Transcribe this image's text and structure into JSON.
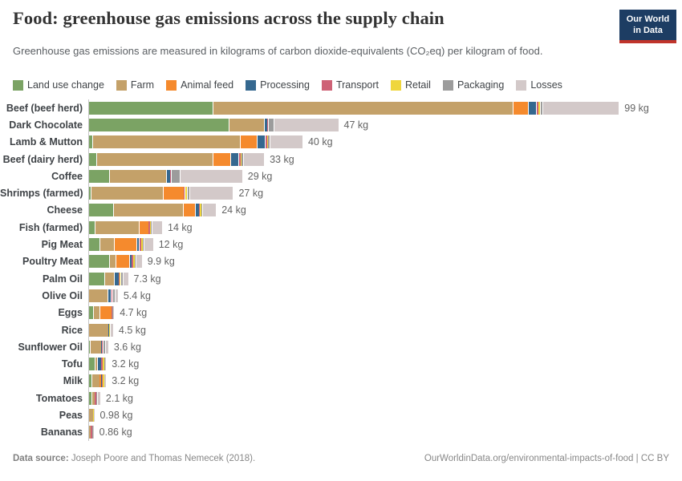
{
  "header": {
    "title": "Food: greenhouse gas emissions across the supply chain",
    "subtitle": "Greenhouse gas emissions are measured in kilograms of carbon dioxide-equivalents (CO₂eq) per kilogram of food.",
    "logo": {
      "line1": "Our World",
      "line2": "in Data",
      "bg_color": "#1d3d63",
      "accent_color": "#c0342b"
    }
  },
  "chart_data": {
    "type": "bar",
    "orientation": "horizontal",
    "stacked": true,
    "title": "Food: greenhouse gas emissions across the supply chain",
    "unit": "kg CO₂eq per kilogram of food",
    "legend_position": "top",
    "grid": false,
    "xlim": [
      0,
      100
    ],
    "series": [
      {
        "name": "Land use change",
        "color": "#7BA364"
      },
      {
        "name": "Farm",
        "color": "#C4A169"
      },
      {
        "name": "Animal feed",
        "color": "#F58A2D"
      },
      {
        "name": "Processing",
        "color": "#35688F"
      },
      {
        "name": "Transport",
        "color": "#CE6276"
      },
      {
        "name": "Retail",
        "color": "#EFD63C"
      },
      {
        "name": "Packaging",
        "color": "#9C9C9C"
      },
      {
        "name": "Losses",
        "color": "#D3C9C9"
      }
    ],
    "rows": [
      {
        "label": "Beef (beef herd)",
        "values": [
          23.2,
          56.2,
          2.9,
          1.4,
          0.5,
          0.3,
          0.4,
          14.4
        ],
        "total": 99,
        "total_label": "99 kg"
      },
      {
        "label": "Dark Chocolate",
        "values": [
          26.1,
          6.7,
          0,
          0.6,
          0.1,
          0.1,
          1.0,
          12.1
        ],
        "total": 47,
        "total_label": "47 kg"
      },
      {
        "label": "Lamb & Mutton",
        "values": [
          0.6,
          27.7,
          3.2,
          1.4,
          0.5,
          0.2,
          0.3,
          6.1
        ],
        "total": 40,
        "total_label": "40 kg"
      },
      {
        "label": "Beef (dairy herd)",
        "values": [
          1.3,
          21.9,
          3.3,
          1.5,
          0.4,
          0.2,
          0.3,
          3.9
        ],
        "total": 33,
        "total_label": "33 kg"
      },
      {
        "label": "Coffee",
        "values": [
          3.7,
          10.8,
          0,
          0.7,
          0.1,
          0.1,
          1.6,
          11.7
        ],
        "total": 29,
        "total_label": "29 kg"
      },
      {
        "label": "Shrimps (farmed)",
        "values": [
          0.3,
          13.5,
          3.9,
          0,
          0.2,
          0.4,
          0.5,
          8.2
        ],
        "total": 27,
        "total_label": "27 kg"
      },
      {
        "label": "Cheese",
        "values": [
          4.5,
          13.1,
          2.3,
          0.7,
          0.1,
          0.3,
          0.2,
          2.6
        ],
        "total": 24,
        "total_label": "24 kg"
      },
      {
        "label": "Fish (farmed)",
        "values": [
          1.1,
          8.2,
          1.8,
          0.1,
          0.3,
          0.1,
          0.1,
          2.0
        ],
        "total": 14,
        "total_label": "14 kg"
      },
      {
        "label": "Pig Meat",
        "values": [
          2.0,
          2.6,
          4.3,
          0.5,
          0.35,
          0.3,
          0.15,
          1.8
        ],
        "total": 12,
        "total_label": "12 kg"
      },
      {
        "label": "Poultry Meat",
        "values": [
          3.7,
          1.2,
          2.6,
          0.5,
          0.3,
          0.3,
          0.1,
          1.2
        ],
        "total": 9.9,
        "total_label": "9.9 kg"
      },
      {
        "label": "Palm Oil",
        "values": [
          2.8,
          1.8,
          0,
          0.9,
          0.25,
          0.05,
          0.5,
          1.0
        ],
        "total": 7.3,
        "total_label": "7.3 kg"
      },
      {
        "label": "Olive Oil",
        "values": [
          0,
          3.5,
          0,
          0.5,
          0.35,
          0.05,
          0.4,
          0.6
        ],
        "total": 5.4,
        "total_label": "5.4 kg"
      },
      {
        "label": "Eggs",
        "values": [
          0.7,
          1.3,
          2.2,
          0,
          0.1,
          0.05,
          0.15,
          0.2
        ],
        "total": 4.7,
        "total_label": "4.7 kg"
      },
      {
        "label": "Rice",
        "values": [
          0,
          3.6,
          0,
          0.1,
          0.1,
          0.05,
          0.1,
          0.55
        ],
        "total": 4.5,
        "total_label": "4.5 kg"
      },
      {
        "label": "Sunflower Oil",
        "values": [
          0.1,
          2.1,
          0,
          0.2,
          0.15,
          0.05,
          0.35,
          0.65
        ],
        "total": 3.6,
        "total_label": "3.6 kg"
      },
      {
        "label": "Tofu",
        "values": [
          1.0,
          0.5,
          0,
          0.8,
          0.2,
          0.3,
          0.2,
          0.2
        ],
        "total": 3.2,
        "total_label": "3.2 kg"
      },
      {
        "label": "Milk",
        "values": [
          0.5,
          1.5,
          0.25,
          0.15,
          0.1,
          0.3,
          0.1,
          0.3
        ],
        "total": 3.2,
        "total_label": "3.2 kg"
      },
      {
        "label": "Tomatoes",
        "values": [
          0.4,
          0.7,
          0,
          0,
          0.2,
          0.02,
          0.15,
          0.63
        ],
        "total": 2.1,
        "total_label": "2.1 kg"
      },
      {
        "label": "Peas",
        "values": [
          0,
          0.72,
          0,
          0,
          0.1,
          0.04,
          0.04,
          0.08
        ],
        "total": 0.98,
        "total_label": "0.98 kg"
      },
      {
        "label": "Bananas",
        "values": [
          0,
          0.27,
          0,
          0.06,
          0.3,
          0.02,
          0.07,
          0.14
        ],
        "total": 0.86,
        "total_label": "0.86 kg"
      }
    ]
  },
  "footer": {
    "source_label": "Data source:",
    "source_value": " Joseph Poore and Thomas Nemecek (2018).",
    "link": "OurWorldinData.org/environmental-impacts-of-food",
    "license": " | CC BY"
  }
}
